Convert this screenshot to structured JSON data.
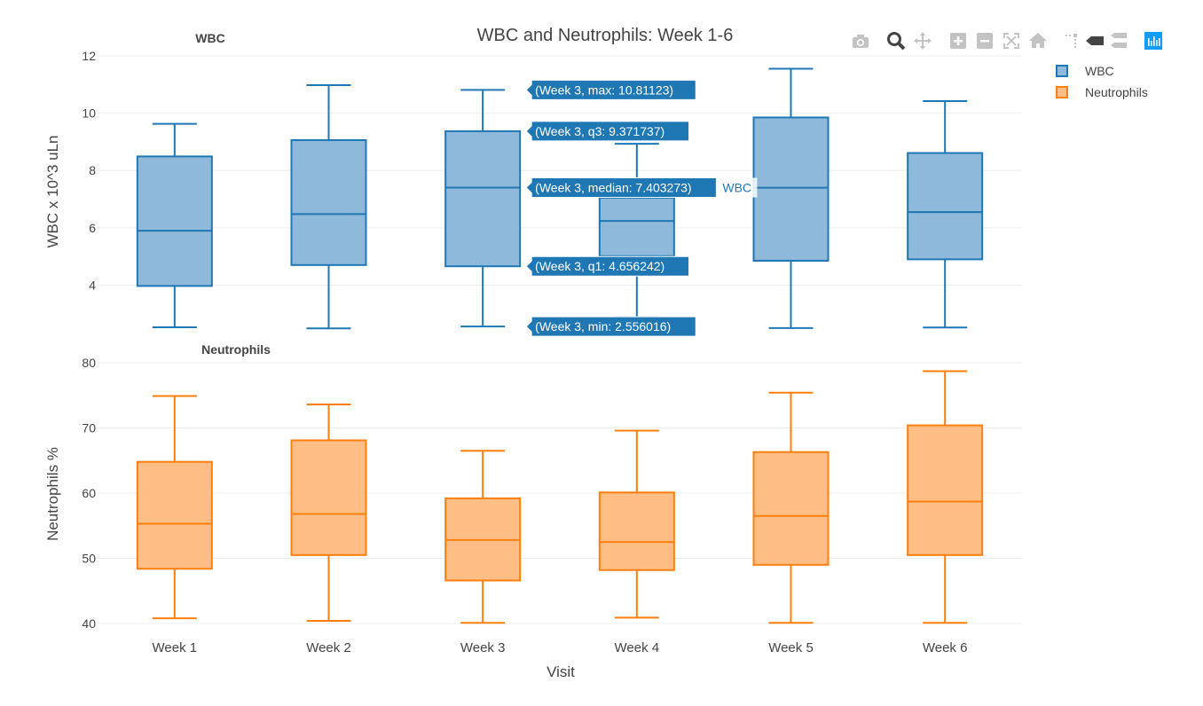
{
  "chart_data": {
    "type": "box",
    "title": "WBC and Neutrophils: Week 1-6",
    "xlabel": "Visit",
    "categories": [
      "Week 1",
      "Week 2",
      "Week 3",
      "Week 4",
      "Week 5",
      "Week 6"
    ],
    "subplots": [
      {
        "title": "WBC",
        "ylabel": "WBC x 10^3 uLn",
        "ylim": [
          2.2,
          12.0
        ],
        "yticks": [
          4,
          6,
          8,
          10,
          12
        ],
        "series": "WBC",
        "boxes": [
          {
            "min": 2.53,
            "q1": 3.97,
            "median": 5.9,
            "q3": 8.49,
            "max": 9.63
          },
          {
            "min": 2.49,
            "q1": 4.7,
            "median": 6.48,
            "q3": 9.06,
            "max": 10.98
          },
          {
            "min": 2.556016,
            "q1": 4.656242,
            "median": 7.403273,
            "q3": 9.371737,
            "max": 10.81123
          },
          {
            "min": 2.88,
            "q1": 5.01,
            "median": 6.24,
            "q3": 7.05,
            "max": 8.93
          },
          {
            "min": 2.5,
            "q1": 4.85,
            "median": 7.4,
            "q3": 9.85,
            "max": 11.55
          },
          {
            "min": 2.52,
            "q1": 4.9,
            "median": 6.55,
            "q3": 8.61,
            "max": 10.42
          }
        ]
      },
      {
        "title": "Neutrophils",
        "ylabel": "Neutrophils %",
        "ylim": [
          40,
          80
        ],
        "yticks": [
          40,
          50,
          60,
          70,
          80
        ],
        "series": "Neutrophils",
        "boxes": [
          {
            "min": 40.8,
            "q1": 48.4,
            "median": 55.3,
            "q3": 64.8,
            "max": 74.9
          },
          {
            "min": 40.4,
            "q1": 50.5,
            "median": 56.8,
            "q3": 68.1,
            "max": 73.6
          },
          {
            "min": 40.1,
            "q1": 46.6,
            "median": 52.8,
            "q3": 59.2,
            "max": 66.5
          },
          {
            "min": 40.9,
            "q1": 48.2,
            "median": 52.5,
            "q3": 60.1,
            "max": 69.6
          },
          {
            "min": 40.1,
            "q1": 49.0,
            "median": 56.5,
            "q3": 66.3,
            "max": 75.4
          },
          {
            "min": 40.1,
            "q1": 50.5,
            "median": 58.7,
            "q3": 70.4,
            "max": 78.7
          }
        ]
      }
    ],
    "legend": {
      "placement": "top-right",
      "entries": [
        {
          "name": "WBC",
          "color": "#1f77b4",
          "fill": "#8fb9da"
        },
        {
          "name": "Neutrophils",
          "color": "#ff7f0e",
          "fill": "#ffbe85"
        }
      ]
    },
    "hover": {
      "category": "Week 3",
      "trace": "WBC",
      "labels": [
        "(Week 3, max: 10.81123)",
        "(Week 3, q3: 9.371737)",
        "(Week 3, median: 7.403273)",
        "(Week 3, q1: 4.656242)",
        "(Week 3, min: 2.556016)"
      ]
    },
    "grid": true
  },
  "colors": {
    "wbc_line": "#1f77b4",
    "wbc_fill": "#8fb9da",
    "neut_line": "#ff7f0e",
    "neut_fill": "#ffbe85",
    "grid": "#eeeeee",
    "text": "#444444",
    "modebar_icon": "#c3c3c3",
    "modebar_active": "#444444",
    "modebar_logo": "#119dff"
  },
  "modebar": {
    "icons": [
      "camera-icon",
      "zoom-icon",
      "pan-icon",
      "zoom-in-icon",
      "zoom-out-icon",
      "autoscale-icon",
      "home-icon",
      "spike-lines-icon",
      "hover-closest-icon",
      "hover-compare-icon",
      "plotly-logo-icon"
    ]
  }
}
